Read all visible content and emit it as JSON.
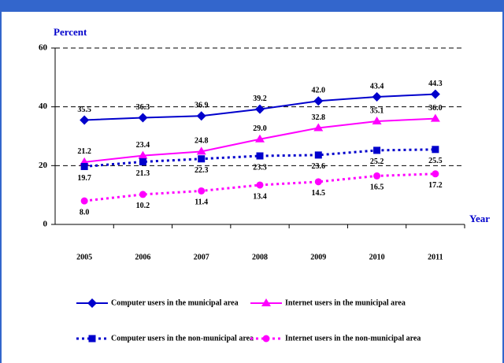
{
  "chart_data": {
    "type": "line",
    "y_label": "Percent",
    "x_label": "Year",
    "categories": [
      "2005",
      "2006",
      "2007",
      "2008",
      "2009",
      "2010",
      "2011"
    ],
    "ylim": [
      0,
      60
    ],
    "yticks": [
      0,
      20,
      40,
      60
    ],
    "grid": true,
    "series": [
      {
        "name": "Computer users in the municipal area",
        "color": "#0000cc",
        "line_style": "solid",
        "marker": "diamond",
        "values": [
          35.5,
          36.3,
          36.9,
          39.2,
          42.0,
          43.4,
          44.3
        ],
        "value_labels": [
          "35.5",
          "36.3",
          "36.9",
          "39.2",
          "42.0",
          "43.4",
          "44.3"
        ],
        "label_side": "above"
      },
      {
        "name": "Internet users in the municipal area",
        "color": "#ff00ff",
        "line_style": "solid",
        "marker": "triangle",
        "values": [
          21.2,
          23.4,
          24.8,
          29.0,
          32.8,
          35.1,
          36.0
        ],
        "value_labels": [
          "21.2",
          "23.4",
          "24.8",
          "29.0",
          "32.8",
          "35.1",
          "36.0"
        ],
        "label_side": "above"
      },
      {
        "name": "Computer users in the non-municipal area",
        "color": "#0000cc",
        "line_style": "dotted",
        "marker": "square",
        "values": [
          19.7,
          21.3,
          22.3,
          23.3,
          23.6,
          25.2,
          25.5
        ],
        "value_labels": [
          "19.7",
          "21.3",
          "22.3",
          "23.3",
          "23.6",
          "25.2",
          "25.5"
        ],
        "label_side": "below"
      },
      {
        "name": "Internet users in the non-municipal area",
        "color": "#ff00ff",
        "line_style": "dotted",
        "marker": "circle",
        "values": [
          8.0,
          10.2,
          11.4,
          13.4,
          14.5,
          16.5,
          17.2
        ],
        "value_labels": [
          "8.0",
          "10.2",
          "11.4",
          "13.4",
          "14.5",
          "16.5",
          "17.2"
        ],
        "label_side": "below"
      }
    ]
  }
}
